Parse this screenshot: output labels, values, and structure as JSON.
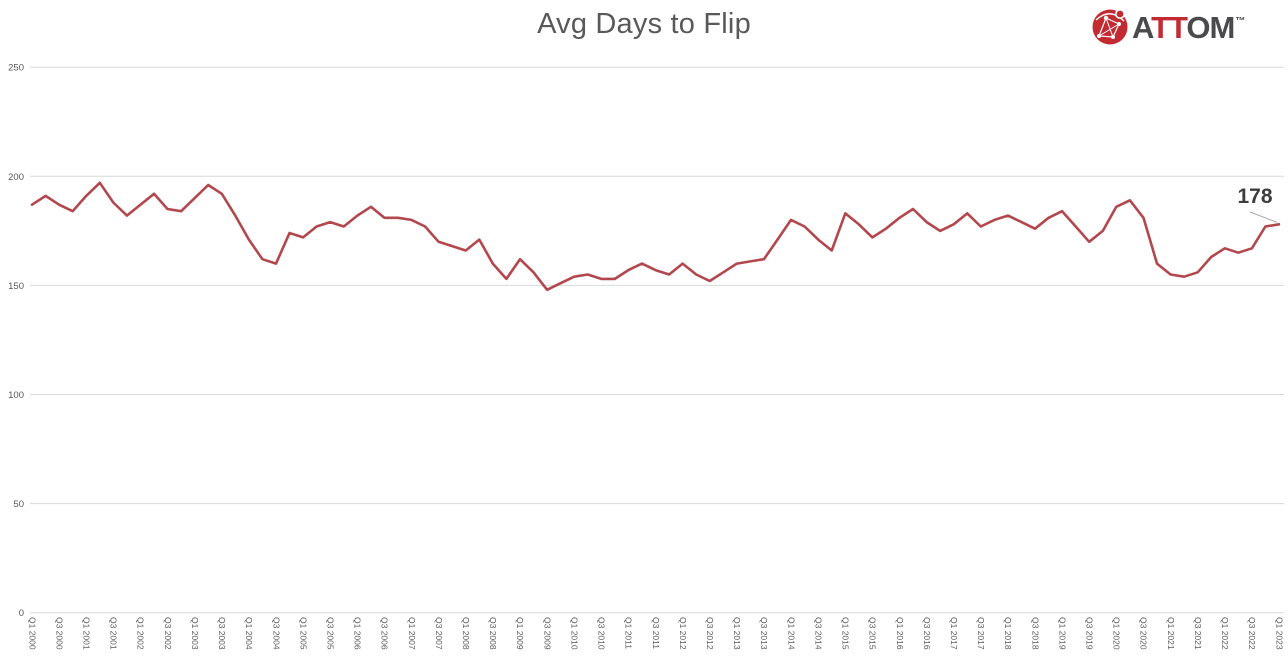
{
  "logo": {
    "a": "A",
    "tt": "TT",
    "om": "OM",
    "tm": "™"
  },
  "annotation": {
    "last_value": "178"
  },
  "chart_data": {
    "type": "line",
    "title": "Avg Days to Flip",
    "xlabel": "",
    "ylabel": "",
    "ylim": [
      0,
      250
    ],
    "yticks": [
      0,
      50,
      100,
      150,
      200,
      250
    ],
    "grid": true,
    "legend_position": "none",
    "label_every": 2,
    "colors": {
      "line": "#b2484d",
      "grid": "#d9d9d9",
      "axis_text": "#595959",
      "annotation_text": "#3d3d3d",
      "leader_line": "#a6a6a6",
      "logo_red": "#c32b33",
      "logo_dark": "#4a4a4c",
      "title_text": "#595959"
    },
    "categories": [
      "Q1 2000",
      "Q2 2000",
      "Q3 2000",
      "Q4 2000",
      "Q1 2001",
      "Q2 2001",
      "Q3 2001",
      "Q4 2001",
      "Q1 2002",
      "Q2 2002",
      "Q3 2002",
      "Q4 2002",
      "Q1 2003",
      "Q2 2003",
      "Q3 2003",
      "Q4 2003",
      "Q1 2004",
      "Q2 2004",
      "Q3 2004",
      "Q4 2004",
      "Q1 2005",
      "Q2 2005",
      "Q3 2005",
      "Q4 2005",
      "Q1 2006",
      "Q2 2006",
      "Q3 2006",
      "Q4 2006",
      "Q1 2007",
      "Q2 2007",
      "Q3 2007",
      "Q4 2007",
      "Q1 2008",
      "Q2 2008",
      "Q3 2008",
      "Q4 2008",
      "Q1 2009",
      "Q2 2009",
      "Q3 2009",
      "Q4 2009",
      "Q1 2010",
      "Q2 2010",
      "Q3 2010",
      "Q4 2010",
      "Q1 2011",
      "Q2 2011",
      "Q3 2011",
      "Q4 2011",
      "Q1 2012",
      "Q2 2012",
      "Q3 2012",
      "Q4 2012",
      "Q1 2013",
      "Q2 2013",
      "Q3 2013",
      "Q4 2013",
      "Q1 2014",
      "Q2 2014",
      "Q3 2014",
      "Q4 2014",
      "Q1 2015",
      "Q2 2015",
      "Q3 2015",
      "Q4 2015",
      "Q1 2016",
      "Q2 2016",
      "Q3 2016",
      "Q4 2016",
      "Q1 2017",
      "Q2 2017",
      "Q3 2017",
      "Q4 2017",
      "Q1 2018",
      "Q2 2018",
      "Q3 2018",
      "Q4 2018",
      "Q1 2019",
      "Q2 2019",
      "Q3 2019",
      "Q4 2019",
      "Q1 2020",
      "Q2 2020",
      "Q3 2020",
      "Q4 2020",
      "Q1 2021",
      "Q2 2021",
      "Q3 2021",
      "Q4 2021",
      "Q1 2022",
      "Q2 2022",
      "Q3 2022",
      "Q4 2022",
      "Q1 2023"
    ],
    "series": [
      {
        "name": "Avg Days to Flip",
        "values": [
          187,
          191,
          187,
          184,
          191,
          197,
          188,
          182,
          187,
          192,
          185,
          184,
          190,
          196,
          192,
          182,
          171,
          162,
          160,
          174,
          172,
          177,
          179,
          177,
          182,
          186,
          181,
          181,
          180,
          177,
          170,
          168,
          166,
          171,
          160,
          153,
          162,
          156,
          148,
          151,
          154,
          155,
          153,
          153,
          157,
          160,
          157,
          155,
          160,
          155,
          152,
          156,
          160,
          161,
          162,
          171,
          180,
          177,
          171,
          166,
          183,
          178,
          172,
          176,
          181,
          185,
          179,
          175,
          178,
          183,
          177,
          180,
          182,
          179,
          176,
          181,
          184,
          177,
          170,
          175,
          186,
          189,
          181,
          160,
          155,
          154,
          156,
          163,
          167,
          165,
          167,
          177,
          178
        ]
      }
    ]
  }
}
